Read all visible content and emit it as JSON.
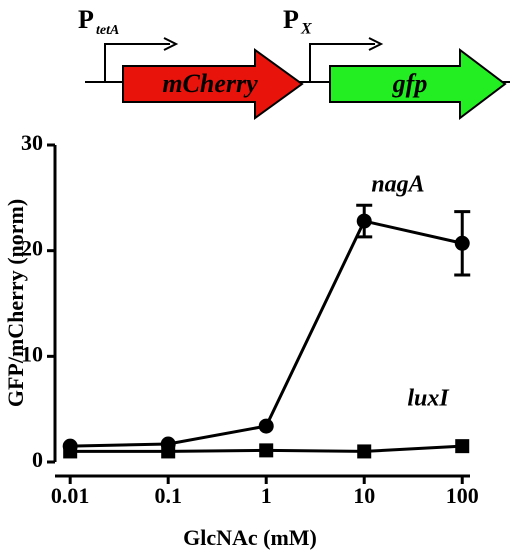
{
  "diagram": {
    "promoters": [
      {
        "label": "P",
        "sub": "tetA"
      },
      {
        "label": "P",
        "sub": "X"
      }
    ],
    "genes": [
      {
        "label": "mCherry",
        "color": "#e8140c"
      },
      {
        "label": "gfp",
        "color": "#22ee22"
      }
    ]
  },
  "chart_data": {
    "type": "line",
    "x_label": "GlcNAc (mM)",
    "y_label": "GFP/mCherry (norm)",
    "x": [
      0.01,
      0.1,
      1,
      10,
      100
    ],
    "xscale": "log",
    "xlim": [
      0.007,
      120
    ],
    "xticks": [
      0.01,
      0.1,
      1,
      10,
      100
    ],
    "ylim": [
      0,
      30
    ],
    "yticks": [
      0,
      10,
      20,
      30
    ],
    "series": [
      {
        "name": "nagA",
        "color": "#000000",
        "marker": "circle",
        "values": [
          1.5,
          1.7,
          3.4,
          22.8,
          20.7
        ],
        "errors": [
          null,
          null,
          null,
          1.5,
          3
        ]
      },
      {
        "name": "luxI",
        "color": "#000000",
        "marker": "square",
        "values": [
          1.0,
          1.0,
          1.1,
          1.0,
          1.5
        ]
      }
    ]
  }
}
